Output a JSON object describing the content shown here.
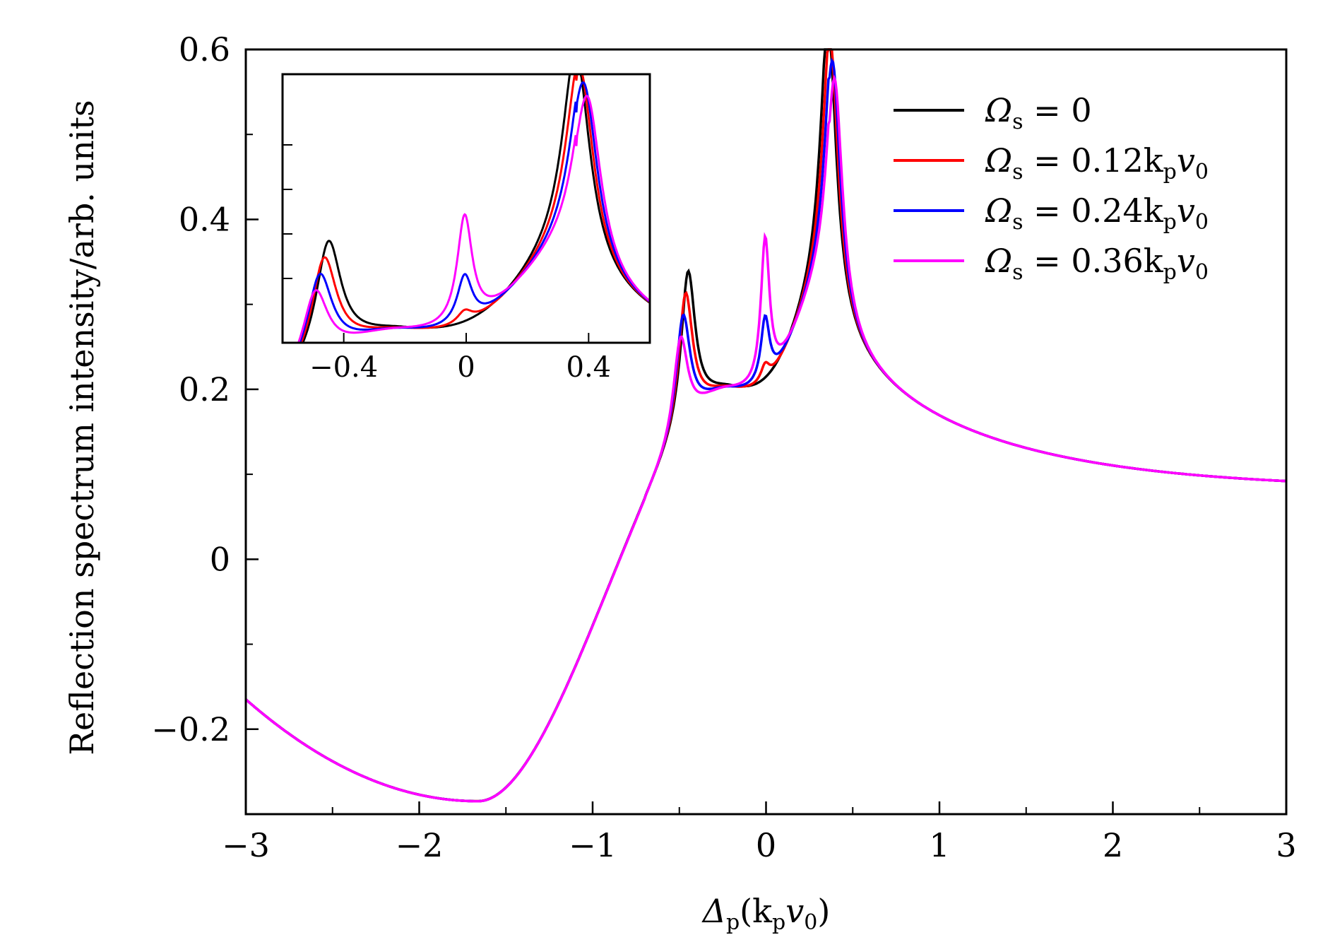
{
  "chart_data": {
    "type": "line",
    "xlabel_main": "Δ",
    "xlabel_sub": "p",
    "xlabel_rest": "(k",
    "xlabel_rest_sub": "p",
    "xlabel_rest2": "v",
    "xlabel_rest2_sub": "0",
    "xlabel_close": ")",
    "ylabel": "Reflection spectrum intensity/arb. units",
    "xlim": [
      -3,
      3
    ],
    "ylim": [
      -0.3,
      0.6
    ],
    "xticks": [
      -3,
      -2,
      -1,
      0,
      1,
      2,
      3
    ],
    "xtick_labels": [
      "−3",
      "−2",
      "−1",
      "0",
      "1",
      "2",
      "3"
    ],
    "yticks": [
      -0.2,
      0,
      0.2,
      0.4,
      0.6
    ],
    "ytick_labels": [
      "−0.2",
      "0",
      "0.2",
      "0.4",
      "0.6"
    ],
    "legend_position": "top-right",
    "series": [
      {
        "name": "Ω_s = 0",
        "legend_main": "Ω",
        "legend_sub": "s",
        "legend_value": " = 0",
        "legend_tail": "",
        "color": "#000000",
        "omega": 0.0
      },
      {
        "name": "Ω_s = 0.12 k_p v_0",
        "legend_main": "Ω",
        "legend_sub": "s",
        "legend_value": " = 0.12k",
        "legend_tail": "v",
        "color": "#ff0000",
        "omega": 0.12
      },
      {
        "name": "Ω_s = 0.24 k_p v_0",
        "legend_main": "Ω",
        "legend_sub": "s",
        "legend_value": " = 0.24k",
        "legend_tail": "v",
        "color": "#0000ff",
        "omega": 0.24
      },
      {
        "name": "Ω_s = 0.36 k_p v_0",
        "legend_main": "Ω",
        "legend_sub": "s",
        "legend_value": " = 0.36k",
        "legend_tail": "v",
        "color": "#ff00ff",
        "omega": 0.36
      }
    ],
    "key_points": [
      {
        "x": -3.0,
        "y": -0.165
      },
      {
        "x": -1.66,
        "y": -0.285
      },
      {
        "x": -1.0,
        "y": -0.02
      },
      {
        "x": -0.45,
        "y": 0.375
      },
      {
        "x": -0.2,
        "y": 0.195
      },
      {
        "x": 0.0,
        "y": 0.41
      },
      {
        "x": 0.36,
        "y": 0.578
      },
      {
        "x": 1.0,
        "y": 0.23
      },
      {
        "x": 2.0,
        "y": 0.12
      },
      {
        "x": 3.0,
        "y": 0.083
      }
    ],
    "inset": {
      "xlim": [
        -0.6,
        0.6
      ],
      "ylim": [
        0.18,
        0.6
      ],
      "xticks": [
        -0.4,
        0,
        0.4
      ],
      "xtick_labels": [
        "−0.4",
        "0",
        "0.4"
      ]
    }
  }
}
